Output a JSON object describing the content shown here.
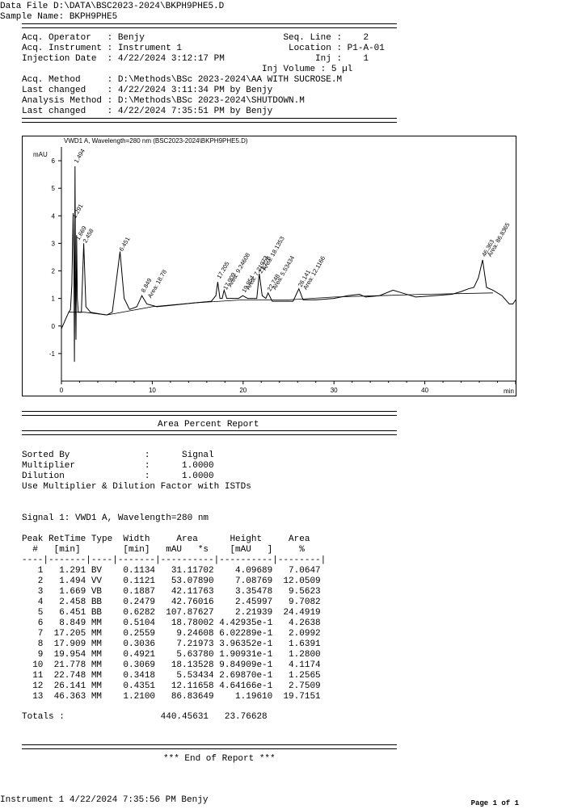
{
  "header": {
    "data_file_line": "Data File D:\\DATA\\BSC2023-2024\\BKPH9PHE5.D",
    "sample_name_line": "Sample Name: BKPH9PHE5"
  },
  "info": {
    "operator_line": "Acq. Operator   : Benjy                          Seq. Line :    2",
    "instrument_line": "Acq. Instrument : Instrument 1                    Location : P1-A-01",
    "injection_line": "Injection Date  : 4/22/2024 3:12:17 PM                 Inj :    1",
    "inj_volume_line": "                                             Inj Volume : 5 µl",
    "method_line": "Acq. Method     : D:\\Methods\\BSc 2023-2024\\AA WITH SUCROSE.M",
    "changed1_line": "Last changed    : 4/22/2024 3:11:34 PM by Benjy",
    "analysis_line": "Analysis Method : D:\\Methods\\BSc 2023-2024\\SHUTDOWN.M",
    "changed2_line": "Last changed    : 4/22/2024 7:35:51 PM by Benjy"
  },
  "chart_data": {
    "type": "line",
    "title": "VWD1 A, Wavelength=280 nm (BSC2023-2024\\BKPH9PHE5.D)",
    "ylabel": "mAU",
    "xlabel": "min",
    "xlim": [
      0,
      50
    ],
    "ylim": [
      -2,
      6.5
    ],
    "x_ticks": [
      0,
      10,
      20,
      30,
      40
    ],
    "y_ticks": [
      -1,
      0,
      1,
      2,
      3,
      4,
      5,
      6
    ],
    "series": [
      {
        "points": [
          [
            0,
            -0.1
          ],
          [
            0.4,
            0.2
          ],
          [
            0.8,
            0.5
          ],
          [
            1.0,
            0.6
          ],
          [
            1.15,
            1.5
          ],
          [
            1.29,
            4.1
          ],
          [
            1.38,
            2.0
          ],
          [
            1.43,
            -1.3
          ],
          [
            1.494,
            5.8
          ],
          [
            1.56,
            1.0
          ],
          [
            1.6,
            -0.5
          ],
          [
            1.669,
            3.3
          ],
          [
            1.75,
            1.0
          ],
          [
            1.85,
            0.5
          ],
          [
            2.2,
            0.5
          ],
          [
            2.458,
            3.0
          ],
          [
            2.7,
            0.7
          ],
          [
            3.2,
            0.5
          ],
          [
            4.0,
            0.45
          ],
          [
            5.0,
            0.4
          ],
          [
            5.6,
            0.5
          ],
          [
            6.1,
            1.8
          ],
          [
            6.451,
            2.7
          ],
          [
            6.9,
            1.0
          ],
          [
            7.5,
            0.6
          ],
          [
            8.3,
            0.7
          ],
          [
            8.849,
            1.1
          ],
          [
            9.4,
            0.8
          ],
          [
            10.5,
            0.7
          ],
          [
            12.0,
            0.75
          ],
          [
            13.5,
            0.8
          ],
          [
            15.0,
            0.85
          ],
          [
            16.5,
            0.9
          ],
          [
            17.0,
            1.1
          ],
          [
            17.205,
            1.6
          ],
          [
            17.45,
            1.0
          ],
          [
            17.7,
            1.0
          ],
          [
            17.909,
            1.3
          ],
          [
            18.2,
            1.0
          ],
          [
            19.5,
            1.0
          ],
          [
            19.954,
            1.1
          ],
          [
            20.5,
            1.0
          ],
          [
            21.5,
            1.0
          ],
          [
            21.778,
            1.9
          ],
          [
            22.1,
            1.1
          ],
          [
            22.5,
            1.0
          ],
          [
            22.748,
            1.2
          ],
          [
            23.2,
            0.9
          ],
          [
            25.5,
            0.9
          ],
          [
            26.141,
            1.35
          ],
          [
            26.6,
            0.95
          ],
          [
            28.0,
            0.95
          ],
          [
            30.0,
            1.0
          ],
          [
            31.5,
            1.1
          ],
          [
            32.8,
            1.15
          ],
          [
            33.5,
            1.05
          ],
          [
            35.0,
            1.1
          ],
          [
            36.5,
            1.3
          ],
          [
            37.5,
            1.2
          ],
          [
            39.0,
            1.05
          ],
          [
            41.0,
            1.1
          ],
          [
            43.0,
            1.15
          ],
          [
            44.0,
            1.25
          ],
          [
            44.8,
            1.35
          ],
          [
            45.4,
            1.4
          ],
          [
            45.9,
            1.75
          ],
          [
            46.363,
            2.4
          ],
          [
            46.8,
            1.4
          ],
          [
            47.5,
            1.3
          ],
          [
            48.5,
            1.1
          ],
          [
            49.3,
            0.8
          ],
          [
            49.7,
            0.8
          ],
          [
            50.0,
            0.95
          ]
        ]
      },
      {
        "points": [
          [
            0.8,
            0.5
          ],
          [
            2.5,
            0.5
          ],
          [
            5.0,
            0.4
          ],
          [
            10,
            0.7
          ],
          [
            15,
            0.85
          ],
          [
            20,
            0.95
          ],
          [
            25,
            0.95
          ],
          [
            30,
            1.05
          ],
          [
            35,
            1.1
          ],
          [
            40,
            1.15
          ],
          [
            47.5,
            1.2
          ]
        ]
      }
    ],
    "peak_labels": [
      {
        "x": 1.291,
        "y": 3.9,
        "text": "1.291"
      },
      {
        "x": 1.494,
        "y": 5.9,
        "text": "1.494"
      },
      {
        "x": 1.669,
        "y": 3.1,
        "text": "1.669"
      },
      {
        "x": 2.458,
        "y": 3.0,
        "text": "2.458"
      },
      {
        "x": 6.451,
        "y": 2.7,
        "text": "6.451"
      },
      {
        "x": 8.849,
        "y": 1.2,
        "text": "8.849"
      },
      {
        "x": 9.6,
        "y": 1.0,
        "text": "Area: 18.78"
      },
      {
        "x": 17.205,
        "y": 1.7,
        "text": "17.205"
      },
      {
        "x": 17.909,
        "y": 1.3,
        "text": "17.909"
      },
      {
        "x": 18.4,
        "y": 1.4,
        "text": "Area: 9.24608"
      },
      {
        "x": 19.954,
        "y": 1.2,
        "text": "19.954"
      },
      {
        "x": 20.4,
        "y": 1.3,
        "text": "Area: 7.21973"
      },
      {
        "x": 21.778,
        "y": 1.9,
        "text": "21.778"
      },
      {
        "x": 22.2,
        "y": 2.0,
        "text": "Area: 18.1353"
      },
      {
        "x": 22.748,
        "y": 1.25,
        "text": "22.748"
      },
      {
        "x": 23.3,
        "y": 1.3,
        "text": "Area: 5.53434"
      },
      {
        "x": 26.141,
        "y": 1.4,
        "text": "26.141"
      },
      {
        "x": 26.7,
        "y": 1.3,
        "text": "Area: 12.1166"
      },
      {
        "x": 46.363,
        "y": 2.5,
        "text": "46.363"
      },
      {
        "x": 47.0,
        "y": 2.5,
        "text": "Area: 86.8365"
      }
    ]
  },
  "report": {
    "title": "Area Percent Report",
    "sorted_by_line": "Sorted By              :      Signal",
    "multiplier_line": "Multiplier             :      1.0000",
    "dilution_line": "Dilution               :      1.0000",
    "istd_line": "Use Multiplier & Dilution Factor with ISTDs",
    "signal_line": "Signal 1: VWD1 A, Wavelength=280 nm",
    "table_header_1": "Peak RetTime Type  Width     Area      Height     Area  ",
    "table_header_2": "  #   [min]        [min]   mAU   *s    [mAU   ]     %   ",
    "table_divider": "----|-------|----|-------|----------|----------|--------|",
    "rows": [
      "   1   1.291 BV    0.1134   31.11702    4.09689   7.0647",
      "   2   1.494 VV    0.1121   53.07890    7.08769  12.0509",
      "   3   1.669 VB    0.1887   42.11763    3.35478   9.5623",
      "   4   2.458 BB    0.2479   42.76016    2.45997   9.7082",
      "   5   6.451 BB    0.6282  107.87627    2.21939  24.4919",
      "   6   8.849 MM    0.5104   18.78002 4.42935e-1   4.2638",
      "   7  17.205 MM    0.2559    9.24608 6.02289e-1   2.0992",
      "   8  17.909 MM    0.3036    7.21973 3.96352e-1   1.6391",
      "   9  19.954 MM    0.4921    5.63780 1.90931e-1   1.2800",
      "  10  21.778 MM    0.3069   18.13528 9.84909e-1   4.1174",
      "  11  22.748 MM    0.3418    5.53434 2.69870e-1   1.2565",
      "  12  26.141 MM    0.4351   12.11658 4.64166e-1   2.7509",
      "  13  46.363 MM    1.2100   86.83649    1.19610  19.7151"
    ],
    "totals_line": "Totals :                  440.45631   23.76628",
    "end_line": "*** End of Report ***"
  },
  "footer": {
    "left": "Instrument 1 4/22/2024 7:35:56 PM Benjy",
    "right": "Page 1 of 1"
  }
}
